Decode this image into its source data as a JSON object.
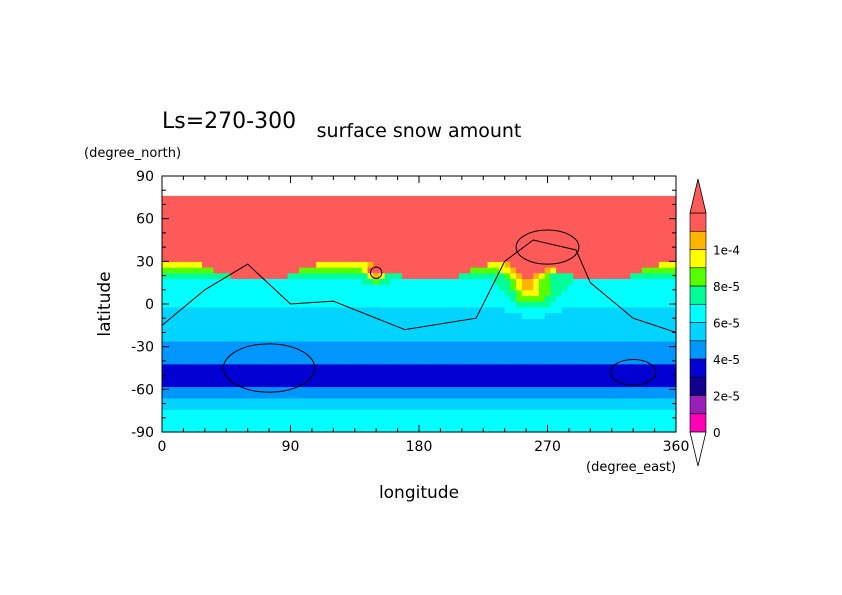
{
  "chart_data": {
    "type": "heatmap",
    "title": "surface snow amount",
    "subtitle": "Ls=270-300",
    "xlabel": "longitude",
    "ylabel": "latitude",
    "x_units": "(degree_east)",
    "y_units": "(degree_north)",
    "xlim": [
      0,
      360
    ],
    "ylim": [
      -90,
      90
    ],
    "x_ticks": [
      "0",
      "90",
      "180",
      "270",
      "360"
    ],
    "y_ticks": [
      "90",
      "60",
      "30",
      "0",
      "-30",
      "-60",
      "-90"
    ],
    "colorbar": {
      "levels": [
        0,
        1e-05,
        2e-05,
        3e-05,
        4e-05,
        5e-05,
        6e-05,
        7e-05,
        8e-05,
        9e-05,
        0.0001,
        0.00011
      ],
      "tick_labels": [
        "0",
        "2e-5",
        "4e-5",
        "6e-5",
        "8e-5",
        "1e-4"
      ],
      "colors": [
        "#ff00b4",
        "#9a1fb8",
        "#12008c",
        "#0000d2",
        "#0096ff",
        "#00d4ff",
        "#00ffff",
        "#00ff96",
        "#56ff00",
        "#ffff00",
        "#ffb400",
        "#ff5a5a"
      ],
      "extend": "both"
    },
    "zonal_profile": [
      {
        "lat": -90,
        "value": 6.5e-05
      },
      {
        "lat": -78,
        "value": 6.5e-05
      },
      {
        "lat": -72,
        "value": 5.5e-05
      },
      {
        "lat": -64,
        "value": 4.5e-05
      },
      {
        "lat": -55,
        "value": 3.5e-05
      },
      {
        "lat": -45,
        "value": 3.5e-05
      },
      {
        "lat": -36,
        "value": 4.5e-05
      },
      {
        "lat": -25,
        "value": 5e-05
      },
      {
        "lat": -10,
        "value": 5.5e-05
      },
      {
        "lat": 5,
        "value": 6.5e-05
      },
      {
        "lat": 20,
        "value": 7e-05
      },
      {
        "lat": 30,
        "value": 0.000115
      },
      {
        "lat": 76,
        "value": 0.000115
      }
    ],
    "data_extent_lat": [
      -90,
      76
    ]
  }
}
